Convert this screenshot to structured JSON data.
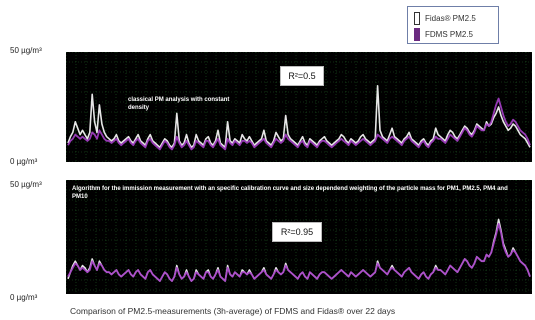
{
  "legend": {
    "items": [
      {
        "label": "Fidas® PM2.5",
        "color": "#ffffff",
        "border": "#333333"
      },
      {
        "label": "FDMS PM2.5",
        "color": "#6b2a80",
        "border": "#6b2a80"
      }
    ]
  },
  "caption": "Comparison of PM2.5-measurements (3h-average) of FDMS and Fidas® over 22 days",
  "chart_data": [
    {
      "type": "line",
      "ylabel_top": "50 µg/m³",
      "ylabel_bottom": "0 µg/m³",
      "ylim": [
        0,
        50
      ],
      "r2": "R²=0.5",
      "annotation": "classical PM analysis with constant density",
      "grid": true,
      "series": [
        {
          "name": "Fidas® PM2.5",
          "color": "#f2f2f2",
          "values": [
            8,
            11,
            13,
            18,
            15,
            12,
            14,
            12,
            10,
            13,
            31,
            18,
            13,
            26,
            17,
            13,
            11,
            10,
            9,
            10,
            12,
            9,
            8,
            9,
            10,
            11,
            9,
            8,
            10,
            12,
            9,
            8,
            7,
            10,
            12,
            9,
            8,
            7,
            6,
            8,
            10,
            9,
            7,
            6,
            8,
            22,
            9,
            7,
            8,
            12,
            8,
            6,
            7,
            12,
            9,
            8,
            7,
            10,
            11,
            8,
            7,
            9,
            14,
            8,
            7,
            6,
            18,
            9,
            8,
            10,
            9,
            8,
            12,
            10,
            9,
            11,
            9,
            7,
            8,
            9,
            10,
            14,
            9,
            8,
            7,
            9,
            13,
            11,
            9,
            10,
            21,
            12,
            10,
            9,
            8,
            7,
            9,
            11,
            8,
            7,
            10,
            9,
            8,
            7,
            9,
            10,
            11,
            9,
            8,
            7,
            8,
            9,
            10,
            12,
            11,
            9,
            8,
            10,
            9,
            8,
            9,
            11,
            12,
            10,
            9,
            8,
            9,
            10,
            35,
            14,
            11,
            10,
            9,
            12,
            15,
            11,
            10,
            9,
            8,
            10,
            11,
            13,
            10,
            9,
            8,
            7,
            9,
            10,
            8,
            7,
            9,
            10,
            15,
            12,
            11,
            10,
            9,
            12,
            14,
            13,
            11,
            10,
            12,
            14,
            16,
            15,
            13,
            12,
            14,
            17,
            16,
            15,
            14,
            18,
            16,
            17,
            20,
            22,
            25,
            21,
            18,
            16,
            14,
            15,
            17,
            16,
            14,
            12,
            11,
            10,
            8,
            6
          ]
        },
        {
          "name": "FDMS PM2.5",
          "color": "#a53fc7",
          "values": [
            7,
            9,
            10,
            12,
            11,
            10,
            11,
            10,
            9,
            10,
            13,
            12,
            10,
            14,
            12,
            10,
            9,
            9,
            8,
            9,
            10,
            8,
            7,
            8,
            9,
            10,
            8,
            7,
            9,
            10,
            8,
            7,
            6,
            9,
            10,
            8,
            7,
            6,
            5,
            7,
            9,
            8,
            6,
            5,
            7,
            11,
            8,
            6,
            7,
            9,
            7,
            5,
            6,
            9,
            8,
            7,
            6,
            9,
            9,
            7,
            6,
            8,
            10,
            7,
            6,
            5,
            10,
            8,
            7,
            9,
            8,
            7,
            9,
            9,
            8,
            9,
            8,
            6,
            7,
            8,
            9,
            10,
            8,
            7,
            6,
            8,
            10,
            9,
            8,
            9,
            12,
            10,
            9,
            8,
            7,
            6,
            8,
            9,
            7,
            6,
            9,
            8,
            7,
            6,
            8,
            9,
            9,
            8,
            7,
            6,
            7,
            8,
            9,
            10,
            9,
            8,
            7,
            9,
            8,
            7,
            8,
            9,
            10,
            9,
            8,
            7,
            8,
            9,
            12,
            11,
            10,
            9,
            8,
            10,
            11,
            10,
            9,
            8,
            7,
            9,
            10,
            11,
            9,
            8,
            7,
            6,
            8,
            9,
            7,
            6,
            8,
            9,
            11,
            10,
            10,
            9,
            8,
            10,
            12,
            11,
            10,
            9,
            11,
            13,
            15,
            14,
            12,
            11,
            13,
            16,
            15,
            14,
            14,
            17,
            16,
            18,
            22,
            26,
            29,
            25,
            21,
            18,
            16,
            17,
            19,
            18,
            16,
            14,
            13,
            12,
            10,
            7
          ]
        }
      ]
    },
    {
      "type": "line",
      "ylabel_top": "50 µg/m³",
      "ylabel_bottom": "0 µg/m³",
      "ylim": [
        0,
        50
      ],
      "r2": "R²=0.95",
      "annotation": "Algorithm for the immission measurement with an specific calibration curve and size dependend weighting of the particle mass for PM1, PM2.5, PM4 and PM10",
      "grid": true,
      "series": [
        {
          "name": "Fidas® PM2.5",
          "color": "#f2f2f2",
          "values": [
            6,
            9,
            12,
            14,
            12,
            10,
            12,
            11,
            9,
            11,
            15,
            12,
            10,
            14,
            12,
            10,
            9,
            9,
            8,
            9,
            10,
            8,
            7,
            8,
            9,
            10,
            8,
            7,
            9,
            10,
            8,
            7,
            6,
            9,
            10,
            8,
            7,
            6,
            5,
            7,
            9,
            8,
            6,
            5,
            7,
            12,
            8,
            6,
            7,
            10,
            7,
            5,
            6,
            10,
            8,
            7,
            6,
            9,
            10,
            7,
            6,
            8,
            11,
            7,
            6,
            5,
            12,
            8,
            7,
            9,
            8,
            7,
            10,
            9,
            8,
            10,
            8,
            6,
            7,
            8,
            9,
            11,
            8,
            7,
            6,
            8,
            11,
            9,
            8,
            9,
            13,
            10,
            9,
            8,
            7,
            6,
            8,
            9,
            7,
            6,
            9,
            8,
            7,
            6,
            8,
            9,
            9,
            8,
            7,
            6,
            7,
            8,
            9,
            10,
            9,
            8,
            7,
            9,
            8,
            7,
            8,
            9,
            10,
            9,
            8,
            7,
            8,
            9,
            14,
            11,
            10,
            9,
            8,
            10,
            12,
            10,
            9,
            8,
            7,
            9,
            10,
            11,
            9,
            8,
            7,
            6,
            8,
            9,
            7,
            6,
            8,
            9,
            12,
            10,
            10,
            9,
            8,
            10,
            12,
            11,
            10,
            9,
            11,
            13,
            15,
            14,
            12,
            11,
            13,
            16,
            15,
            14,
            14,
            17,
            16,
            18,
            23,
            27,
            33,
            28,
            22,
            19,
            16,
            17,
            20,
            18,
            16,
            14,
            13,
            12,
            10,
            7
          ]
        },
        {
          "name": "FDMS PM2.5",
          "color": "#a53fc7",
          "values": [
            7,
            9,
            11,
            13,
            12,
            10,
            11,
            10,
            9,
            10,
            14,
            12,
            10,
            13,
            12,
            10,
            9,
            9,
            8,
            9,
            10,
            8,
            7,
            8,
            9,
            10,
            8,
            7,
            9,
            10,
            8,
            7,
            6,
            9,
            10,
            8,
            7,
            6,
            5,
            7,
            9,
            8,
            6,
            5,
            7,
            11,
            8,
            6,
            7,
            9,
            7,
            5,
            6,
            9,
            8,
            7,
            6,
            9,
            9,
            7,
            6,
            8,
            10,
            7,
            6,
            5,
            11,
            8,
            7,
            9,
            8,
            7,
            9,
            9,
            8,
            9,
            8,
            6,
            7,
            8,
            9,
            10,
            8,
            7,
            6,
            8,
            10,
            9,
            8,
            9,
            12,
            10,
            9,
            8,
            7,
            6,
            8,
            9,
            7,
            6,
            9,
            8,
            7,
            6,
            8,
            9,
            9,
            8,
            7,
            6,
            7,
            8,
            9,
            10,
            9,
            8,
            7,
            9,
            8,
            7,
            8,
            9,
            10,
            9,
            8,
            7,
            8,
            9,
            13,
            11,
            10,
            9,
            8,
            10,
            11,
            10,
            9,
            8,
            7,
            9,
            10,
            11,
            9,
            8,
            7,
            6,
            8,
            9,
            7,
            6,
            8,
            9,
            11,
            10,
            10,
            9,
            8,
            10,
            12,
            11,
            10,
            9,
            11,
            13,
            15,
            14,
            12,
            11,
            13,
            16,
            15,
            14,
            14,
            17,
            16,
            18,
            22,
            26,
            31,
            27,
            21,
            18,
            16,
            17,
            19,
            18,
            16,
            14,
            13,
            12,
            10,
            7
          ]
        }
      ]
    }
  ]
}
